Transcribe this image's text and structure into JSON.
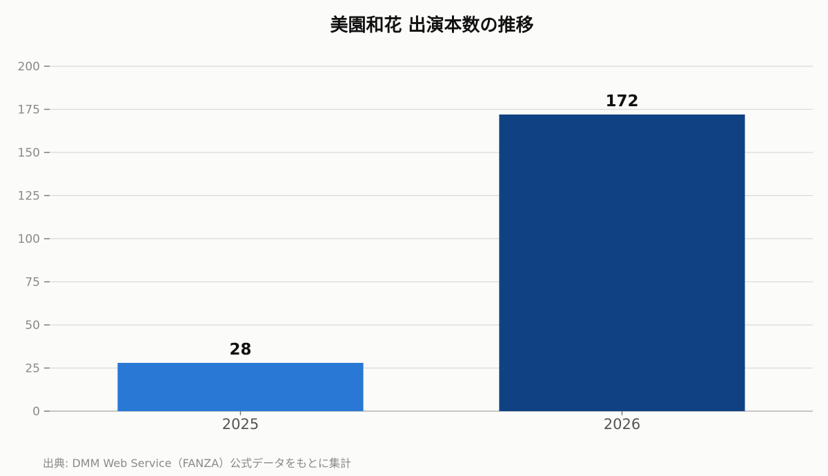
{
  "chart_data": {
    "type": "bar",
    "title": "美園和花 出演本数の推移",
    "categories": [
      "2025",
      "2026"
    ],
    "values": [
      28,
      172
    ],
    "bar_colors": [
      "#2a78d6",
      "#104183"
    ],
    "ylim": [
      0,
      200
    ],
    "yticks": [
      0,
      25,
      50,
      75,
      100,
      125,
      150,
      175,
      200
    ],
    "grid": true,
    "xlabel": "",
    "ylabel": "",
    "data_labels": [
      "28",
      "172"
    ]
  },
  "footer": {
    "source": "出典: DMM Web Service（FANZA）公式データをもとに集計"
  }
}
